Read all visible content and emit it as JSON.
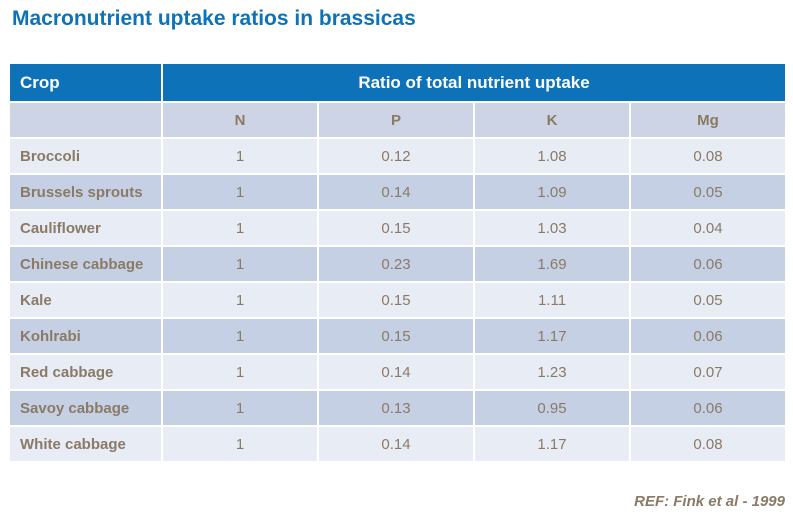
{
  "chart_data": {
    "type": "table",
    "title": "Macronutrient uptake ratios in brassicas",
    "corner_header": "Crop",
    "group_header": "Ratio of total nutrient uptake",
    "columns": [
      "N",
      "P",
      "K",
      "Mg"
    ],
    "rows": [
      {
        "crop": "Broccoli",
        "N": "1",
        "P": "0.12",
        "K": "1.08",
        "Mg": "0.08"
      },
      {
        "crop": "Brussels sprouts",
        "N": "1",
        "P": "0.14",
        "K": "1.09",
        "Mg": "0.05"
      },
      {
        "crop": "Cauliflower",
        "N": "1",
        "P": "0.15",
        "K": "1.03",
        "Mg": "0.04"
      },
      {
        "crop": "Chinese cabbage",
        "N": "1",
        "P": "0.23",
        "K": "1.69",
        "Mg": "0.06"
      },
      {
        "crop": "Kale",
        "N": "1",
        "P": "0.15",
        "K": "1.11",
        "Mg": "0.05"
      },
      {
        "crop": "Kohlrabi",
        "N": "1",
        "P": "0.15",
        "K": "1.17",
        "Mg": "0.06"
      },
      {
        "crop": "Red cabbage",
        "N": "1",
        "P": "0.14",
        "K": "1.23",
        "Mg": "0.07"
      },
      {
        "crop": "Savoy cabbage",
        "N": "1",
        "P": "0.13",
        "K": "0.95",
        "Mg": "0.06"
      },
      {
        "crop": "White cabbage",
        "N": "1",
        "P": "0.14",
        "K": "1.17",
        "Mg": "0.08"
      }
    ],
    "reference": "REF: Fink et al - 1999"
  },
  "colors": {
    "title_text": "#0e72b8",
    "header_bg": "#0e72b8",
    "header_text": "#ffffff",
    "subheader_bg": "#ccd4e6",
    "row_light_bg": "#e8ecf5",
    "row_dark_bg": "#c5d0e4",
    "body_text": "#8a7a66",
    "grid_lines": "#ffffff"
  }
}
